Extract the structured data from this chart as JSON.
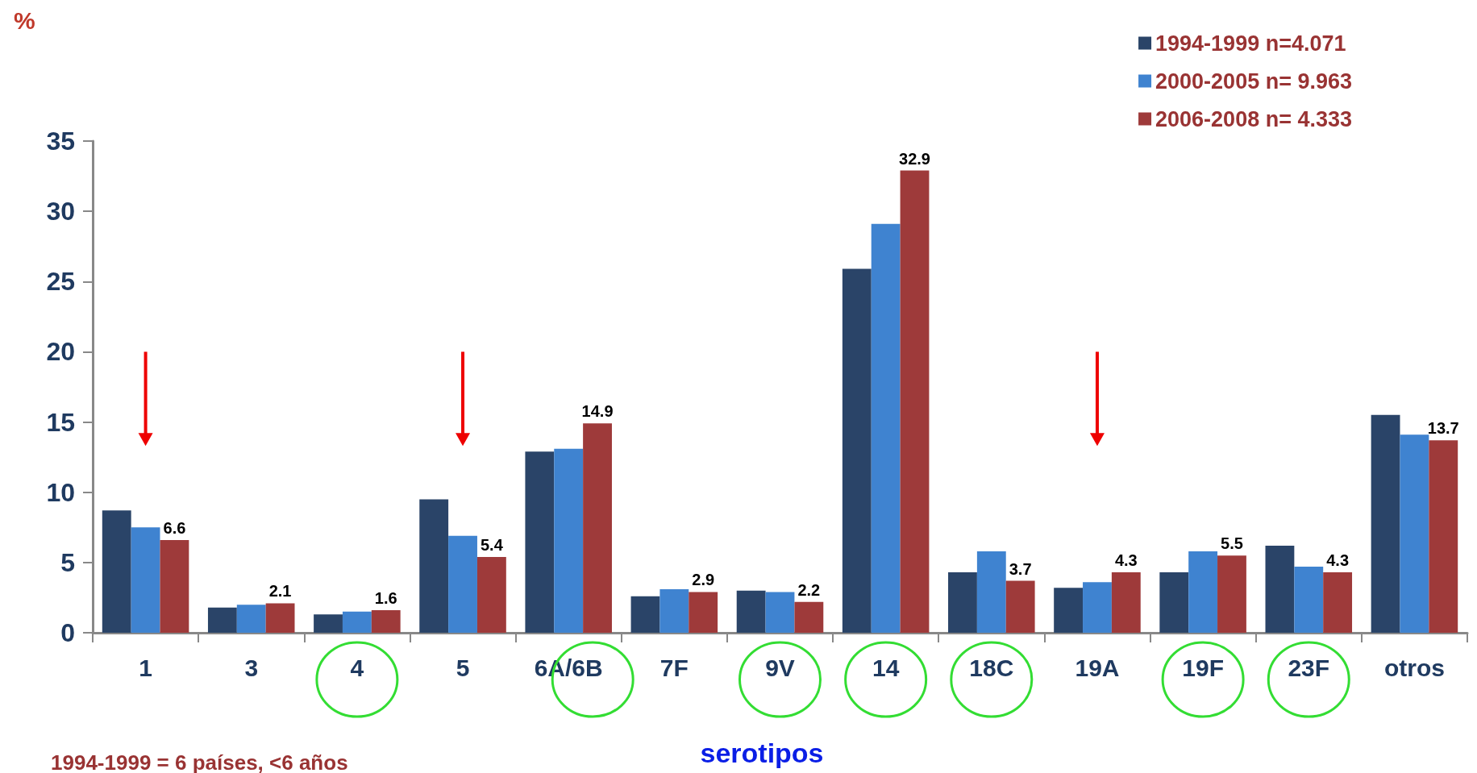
{
  "chart_data": {
    "type": "bar",
    "ylabel": "%",
    "xlabel": "serotipos",
    "categories": [
      "1",
      "3",
      "4",
      "5",
      "6A/6B",
      "7F",
      "9V",
      "14",
      "18C",
      "19A",
      "19F",
      "23F",
      "otros"
    ],
    "series": [
      {
        "name": "1994-1999 n=4.071",
        "color": "#2a4468",
        "values": [
          8.7,
          1.8,
          1.3,
          9.5,
          12.9,
          2.6,
          3.0,
          25.9,
          4.3,
          3.2,
          4.3,
          6.2,
          15.5
        ]
      },
      {
        "name": "2000-2005 n= 9.963",
        "color": "#3f83d0",
        "values": [
          7.5,
          2.0,
          1.5,
          6.9,
          13.1,
          3.1,
          2.9,
          29.1,
          5.8,
          3.6,
          5.8,
          4.7,
          14.1
        ]
      },
      {
        "name": "2006-2008 n= 4.333",
        "color": "#9e3a3a",
        "values": [
          6.6,
          2.1,
          1.6,
          5.4,
          14.9,
          2.9,
          2.2,
          32.9,
          3.7,
          4.3,
          5.5,
          4.3,
          13.7
        ],
        "value_labels": [
          "6.6",
          "2.1",
          "1.6",
          "5.4",
          "14.9",
          "2.9",
          "2.2",
          "32.9",
          "3.7",
          "4.3",
          "5.5",
          "4.3",
          "13.7"
        ]
      }
    ],
    "ylim": [
      0,
      35
    ],
    "yticks": [
      0,
      5,
      10,
      15,
      20,
      25,
      30,
      35
    ],
    "grid": false,
    "legend": "top right",
    "annotations": [
      "1994-1999 = 6 países, <6 años"
    ]
  }
}
